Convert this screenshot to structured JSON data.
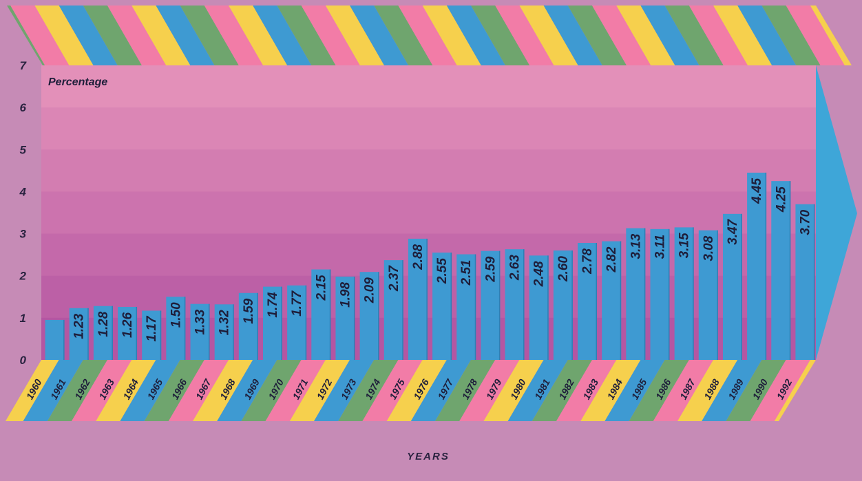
{
  "chart_data": {
    "type": "bar",
    "ylabel": "Percentage",
    "xlabel": "YEARS",
    "ylim": [
      0,
      7
    ],
    "yticks": [
      "0",
      "1",
      "2",
      "3",
      "4",
      "5",
      "6",
      "7"
    ],
    "categories": [
      "1960",
      "1961",
      "1962",
      "1963",
      "1964",
      "1965",
      "1966",
      "1967",
      "1968",
      "1969",
      "1970",
      "1971",
      "1972",
      "1973",
      "1974",
      "1975",
      "1976",
      "1977",
      "1978",
      "1979",
      "1980",
      "1981",
      "1982",
      "1983",
      "1984",
      "1985",
      "1986",
      "1987",
      "1988",
      "1989",
      "1990",
      "1992"
    ],
    "values": [
      0.95,
      1.23,
      1.28,
      1.26,
      1.17,
      1.5,
      1.33,
      1.32,
      1.59,
      1.74,
      1.77,
      2.15,
      1.98,
      2.09,
      2.37,
      2.88,
      2.55,
      2.51,
      2.59,
      2.63,
      2.48,
      2.6,
      2.78,
      2.82,
      3.13,
      3.11,
      3.15,
      3.08,
      3.47,
      4.45,
      4.25,
      3.7
    ],
    "data_labels": [
      "",
      "1.23",
      "1.28",
      "1.26",
      "1.17",
      "1.50",
      "1.33",
      "1.32",
      "1.59",
      "1.74",
      "1.77",
      "2.15",
      "1.98",
      "2.09",
      "2.37",
      "2.88",
      "2.55",
      "2.51",
      "2.59",
      "2.63",
      "2.48",
      "2.60",
      "2.78",
      "2.82",
      "3.13",
      "3.11",
      "3.15",
      "3.08",
      "3.47",
      "4.45",
      "4.25",
      "3.70"
    ],
    "grid": false,
    "colors": {
      "bar": "#3e9ad2",
      "background": "#c68bb6",
      "stripe_cycle": [
        "#6fa56e",
        "#f27ca7",
        "#f6d04d",
        "#3e9ad2"
      ],
      "arrow": "#3ea6d8",
      "band_top": "#e390b9",
      "band_bottom": "#b456a2"
    }
  }
}
